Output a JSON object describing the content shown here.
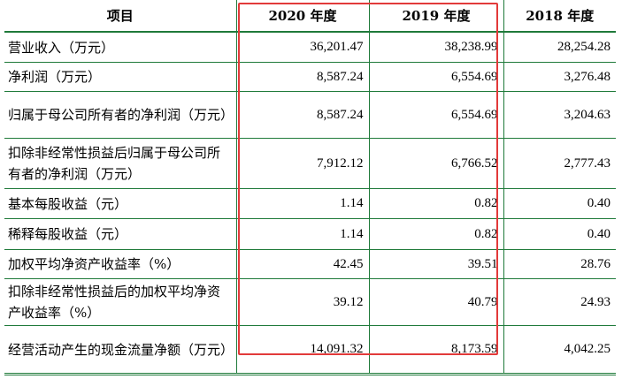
{
  "table": {
    "headers": [
      "项目",
      "2020 年度",
      "2019 年度",
      "2018 年度"
    ],
    "rows": [
      {
        "label": "营业收入（万元）",
        "v2020": "36,201.47",
        "v2019": "38,238.99",
        "v2018": "28,254.28"
      },
      {
        "label": "净利润（万元）",
        "v2020": "8,587.24",
        "v2019": "6,554.69",
        "v2018": "3,276.48"
      },
      {
        "label": "归属于母公司所有者的净利润（万元）",
        "v2020": "8,587.24",
        "v2019": "6,554.69",
        "v2018": "3,204.63"
      },
      {
        "label": "扣除非经常性损益后归属于母公司所有者的净利润（万元）",
        "v2020": "7,912.12",
        "v2019": "6,766.52",
        "v2018": "2,777.43"
      },
      {
        "label": "基本每股收益（元）",
        "v2020": "1.14",
        "v2019": "0.82",
        "v2018": "0.40"
      },
      {
        "label": "稀释每股收益（元）",
        "v2020": "1.14",
        "v2019": "0.82",
        "v2018": "0.40"
      },
      {
        "label": "加权平均净资产收益率（%）",
        "v2020": "42.45",
        "v2019": "39.51",
        "v2018": "28.76"
      },
      {
        "label": "扣除非经常性损益后的加权平均净资产收益率（%）",
        "v2020": "39.12",
        "v2019": "40.79",
        "v2018": "24.93"
      },
      {
        "label": "经营活动产生的现金流量净额（万元）",
        "v2020": "14,091.32",
        "v2019": "8,173.59",
        "v2018": "4,042.25"
      }
    ]
  },
  "colors": {
    "grid": "#1f7a3a",
    "highlight": "#e23a3a"
  }
}
